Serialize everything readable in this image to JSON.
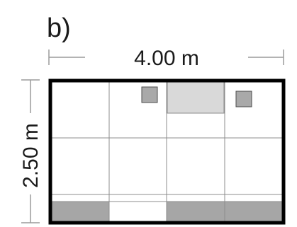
{
  "figure": {
    "panel_label": "b)",
    "width_label": "4.00 m",
    "height_label": "2.50 m"
  },
  "colors": {
    "outline": "#000000",
    "grid_line": "#8c8c8c",
    "dimension_line": "#9a9a9a",
    "small_square_fill": "#a9a9a9",
    "light_panel_fill": "#d9d9d9",
    "bottom_panel_fill": "#a6a6a6",
    "background": "#ffffff"
  }
}
